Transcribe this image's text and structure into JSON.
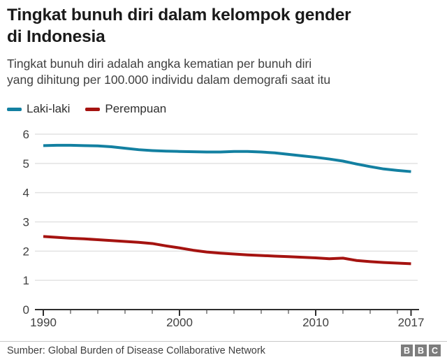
{
  "header": {
    "title": "Tingkat bunuh diri dalam kelompok gender\ndi Indonesia",
    "subtitle": "Tingkat bunuh diri adalah angka kematian per bunuh diri\nyang dihitung per 100.000 individu dalam demografi saat itu"
  },
  "legend": {
    "items": [
      {
        "label": "Laki-laki",
        "color": "#1380A1"
      },
      {
        "label": "Perempuan",
        "color": "#A51310"
      }
    ]
  },
  "chart_data": {
    "type": "line",
    "title": "Tingkat bunuh diri dalam kelompok gender di Indonesia",
    "xlabel": "",
    "ylabel": "",
    "x": [
      1990,
      1991,
      1992,
      1993,
      1994,
      1995,
      1996,
      1997,
      1998,
      1999,
      2000,
      2001,
      2002,
      2003,
      2004,
      2005,
      2006,
      2007,
      2008,
      2009,
      2010,
      2011,
      2012,
      2013,
      2014,
      2015,
      2016,
      2017
    ],
    "series": [
      {
        "name": "Laki-laki",
        "color": "#1380A1",
        "values": [
          5.61,
          5.62,
          5.62,
          5.61,
          5.6,
          5.57,
          5.52,
          5.47,
          5.44,
          5.42,
          5.41,
          5.4,
          5.39,
          5.39,
          5.41,
          5.41,
          5.39,
          5.36,
          5.31,
          5.26,
          5.21,
          5.15,
          5.08,
          4.98,
          4.89,
          4.81,
          4.76,
          4.72
        ]
      },
      {
        "name": "Perempuan",
        "color": "#A51310",
        "values": [
          2.5,
          2.47,
          2.44,
          2.42,
          2.39,
          2.36,
          2.33,
          2.3,
          2.26,
          2.18,
          2.11,
          2.03,
          1.97,
          1.93,
          1.9,
          1.87,
          1.85,
          1.83,
          1.81,
          1.79,
          1.77,
          1.74,
          1.76,
          1.68,
          1.64,
          1.61,
          1.59,
          1.57
        ]
      }
    ],
    "xlim": [
      1990,
      2017
    ],
    "ylim": [
      0,
      6
    ],
    "yticks": [
      0,
      1,
      2,
      3,
      4,
      5,
      6
    ],
    "xticks_major": [
      1990,
      2000,
      2010,
      2017
    ],
    "xticks_minor": [
      1992,
      1994,
      1996,
      1998,
      2002,
      2004,
      2006,
      2008,
      2012,
      2014,
      2016
    ],
    "grid": true,
    "legend_position": "top-left",
    "style": {
      "grid_color": "#e2e2e2",
      "axis_color": "#2e2e2e",
      "tick_label_color": "#404040"
    }
  },
  "footer": {
    "source": "Sumber: Global Burden of Disease Collaborative Network",
    "logo_letters": [
      "B",
      "B",
      "C"
    ]
  }
}
